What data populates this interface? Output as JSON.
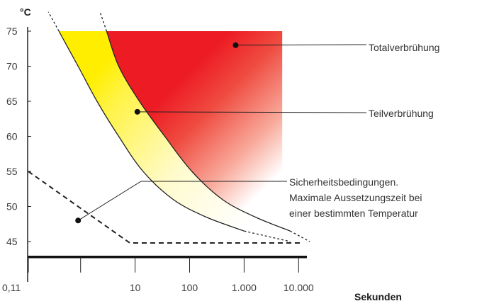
{
  "chart_data": {
    "type": "area",
    "ylabel": "°C",
    "xlabel": "Sekunden",
    "x_scale": "log",
    "x_ticks": [
      0.11,
      10,
      100,
      1000,
      10000
    ],
    "x_tick_labels": [
      "0,11",
      "10",
      "100",
      "1.000",
      "10.000"
    ],
    "y_ticks": [
      45,
      50,
      55,
      60,
      65,
      70,
      75
    ],
    "y_tick_labels": [
      "45",
      "50",
      "55",
      "60",
      "65",
      "70",
      "75"
    ],
    "ylim": [
      41,
      78
    ],
    "grid": false,
    "series": [
      {
        "name": "Teilverbrühung",
        "color": "#ffee00",
        "left_boundary": {
          "x": [
            0.4,
            0.9,
            2,
            5,
            14,
            50,
            200,
            1000,
            7000
          ],
          "y": [
            75,
            70,
            65,
            60,
            55,
            51,
            48.5,
            46.5,
            45
          ]
        },
        "right_boundary": {
          "x": [
            3,
            5,
            12,
            35,
            110,
            400,
            1600,
            7000,
            16000
          ],
          "y": [
            75,
            70,
            65,
            60,
            55,
            51,
            48.5,
            46.5,
            45
          ]
        }
      },
      {
        "name": "Totalverbrühung",
        "color": "#ee1c25",
        "left_boundary": {
          "x": [
            3,
            5,
            12,
            35,
            110,
            400,
            1600,
            7000,
            16000
          ],
          "y": [
            75,
            70,
            65,
            60,
            55,
            51,
            48.5,
            46.5,
            45
          ]
        },
        "x_max": 5000,
        "y_max": 75
      },
      {
        "name": "Sicherheitsbedingungen",
        "style": "dashed",
        "x": [
          0.11,
          8,
          12000
        ],
        "y": [
          55,
          44.8,
          44.8
        ]
      }
    ],
    "baseline_y": 42.8,
    "annotations": [
      {
        "lines": [
          "Totalverbrühung"
        ],
        "target": {
          "x": 700,
          "y": 73
        }
      },
      {
        "lines": [
          "Teilverbrühung"
        ],
        "target": {
          "x": 11,
          "y": 63.5
        }
      },
      {
        "lines": [
          "Sicherheitsbedingungen.",
          "Maximale Aussetzungszeit bei",
          "einer bestimmten Temperatur"
        ],
        "target": {
          "x": 0.9,
          "y": 48
        }
      }
    ]
  }
}
